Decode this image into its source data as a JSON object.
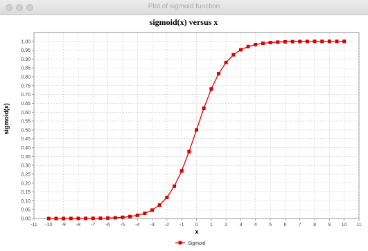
{
  "window": {
    "title": "Plot of sigmoid function"
  },
  "chart_data": {
    "type": "line",
    "title": "sigmoid(x) versus x",
    "xlabel": "x",
    "ylabel": "sigmoid(x)",
    "xlim": [
      -11,
      11
    ],
    "ylim": [
      0,
      1.05
    ],
    "x_ticks": [
      -11,
      -10,
      -9,
      -8,
      -7,
      -6,
      -5,
      -4,
      -3,
      -2,
      -1,
      0,
      1,
      2,
      3,
      4,
      5,
      6,
      7,
      8,
      9,
      10,
      11
    ],
    "y_ticks": [
      "0.00",
      "0.05",
      "0.10",
      "0.15",
      "0.20",
      "0.25",
      "0.30",
      "0.35",
      "0.40",
      "0.45",
      "0.50",
      "0.55",
      "0.60",
      "0.65",
      "0.70",
      "0.75",
      "0.80",
      "0.85",
      "0.90",
      "0.95",
      "1.00"
    ],
    "grid": true,
    "legend_position": "bottom-center",
    "series": [
      {
        "name": "Sigmoid",
        "color": "#dd0000",
        "marker": "square",
        "x": [
          -10,
          -9.5,
          -9,
          -8.5,
          -8,
          -7.5,
          -7,
          -6.5,
          -6,
          -5.5,
          -5,
          -4.5,
          -4,
          -3.5,
          -3,
          -2.5,
          -2,
          -1.5,
          -1,
          -0.5,
          0,
          0.5,
          1,
          1.5,
          2,
          2.5,
          3,
          3.5,
          4,
          4.5,
          5,
          5.5,
          6,
          6.5,
          7,
          7.5,
          8,
          8.5,
          9,
          9.5,
          10
        ],
        "y": [
          0.0,
          0.0001,
          0.0001,
          0.0002,
          0.0003,
          0.0006,
          0.0009,
          0.0015,
          0.0025,
          0.0041,
          0.0067,
          0.011,
          0.018,
          0.0293,
          0.0474,
          0.0759,
          0.1192,
          0.1824,
          0.2689,
          0.3775,
          0.5,
          0.6225,
          0.7311,
          0.8176,
          0.8808,
          0.9241,
          0.9526,
          0.9707,
          0.982,
          0.989,
          0.9933,
          0.9959,
          0.9975,
          0.9985,
          0.9991,
          0.9994,
          0.9997,
          0.9998,
          0.9999,
          0.9999,
          1.0
        ]
      }
    ]
  }
}
